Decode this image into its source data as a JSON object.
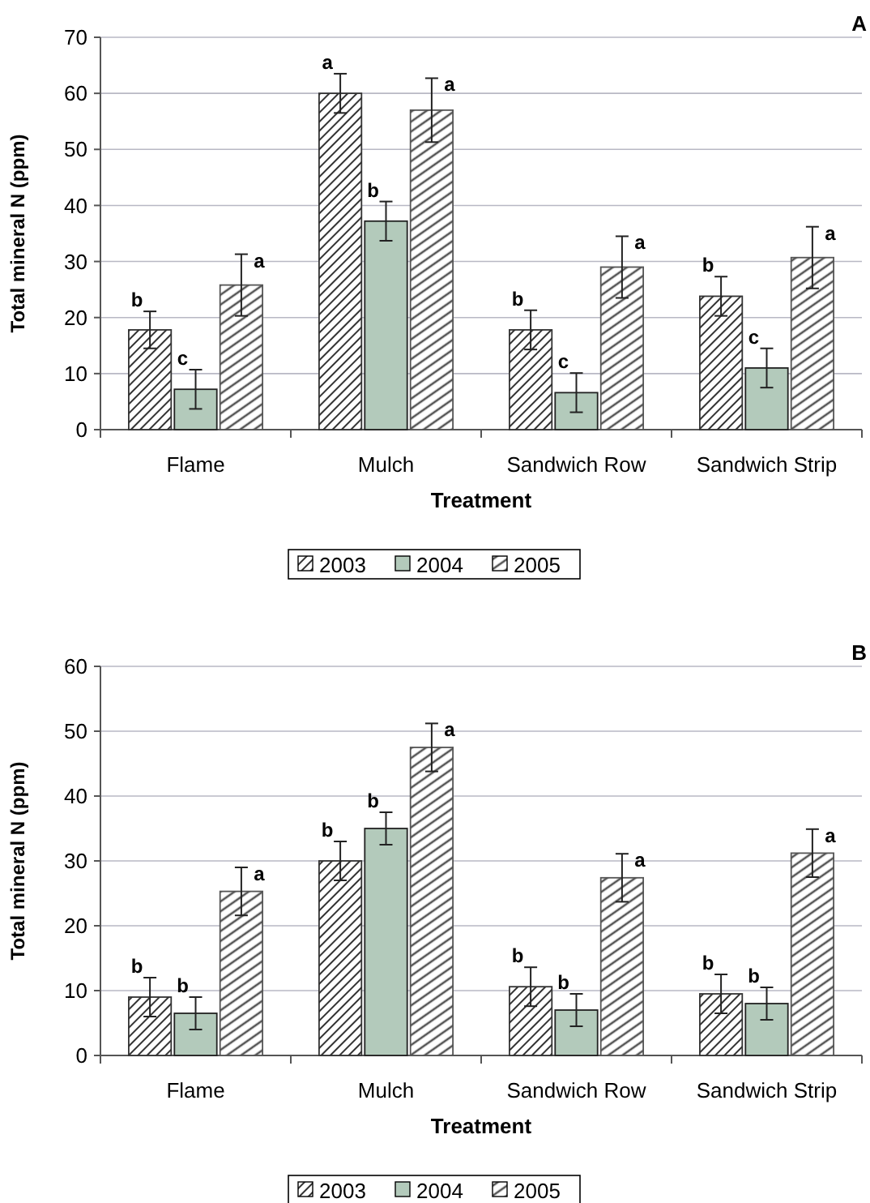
{
  "chart_data": [
    {
      "type": "bar",
      "title": "A",
      "xlabel": "Treatment",
      "ylabel": "Total mineral N (ppm)",
      "categories": [
        "Flame",
        "Mulch",
        "Sandwich Row",
        "Sandwich Strip"
      ],
      "ylim": [
        0,
        70
      ],
      "yticks": [
        0,
        10,
        20,
        30,
        40,
        50,
        60,
        70
      ],
      "grid": "y",
      "legend": "bottom",
      "series": [
        {
          "name": "2003",
          "color": "#333333",
          "values": [
            17.8,
            60,
            17.8,
            23.8
          ],
          "errors": [
            3.3,
            3.5,
            3.5,
            3.5
          ],
          "value_labels": [
            "b",
            "a",
            "b",
            "b"
          ]
        },
        {
          "name": "2004",
          "color": "#b3cabb",
          "values": [
            7.2,
            37.2,
            6.6,
            11
          ],
          "errors": [
            3.5,
            3.5,
            3.5,
            3.5
          ],
          "value_labels": [
            "c",
            "b",
            "c",
            "c"
          ]
        },
        {
          "name": "2005",
          "color": "#555555",
          "values": [
            25.8,
            57,
            29,
            30.7
          ],
          "errors": [
            5.5,
            5.7,
            5.5,
            5.5
          ],
          "value_labels": [
            "a",
            "a",
            "a",
            "a"
          ]
        }
      ]
    },
    {
      "type": "bar",
      "title": "B",
      "xlabel": "Treatment",
      "ylabel": "Total mineral N (ppm)",
      "categories": [
        "Flame",
        "Mulch",
        "Sandwich Row",
        "Sandwich Strip"
      ],
      "ylim": [
        0,
        60
      ],
      "yticks": [
        0,
        10,
        20,
        30,
        40,
        50,
        60
      ],
      "grid": "y",
      "legend": "bottom",
      "series": [
        {
          "name": "2003",
          "color": "#333333",
          "values": [
            9,
            30,
            10.6,
            9.5
          ],
          "errors": [
            3,
            3,
            3,
            3
          ],
          "value_labels": [
            "b",
            "b",
            "b",
            "b"
          ]
        },
        {
          "name": "2004",
          "color": "#b3cabb",
          "values": [
            6.5,
            35,
            7,
            8
          ],
          "errors": [
            2.5,
            2.5,
            2.5,
            2.5
          ],
          "value_labels": [
            "b",
            "b",
            "b",
            "b"
          ]
        },
        {
          "name": "2005",
          "color": "#555555",
          "values": [
            25.3,
            47.5,
            27.4,
            31.2
          ],
          "errors": [
            3.7,
            3.7,
            3.7,
            3.7
          ],
          "value_labels": [
            "a",
            "a",
            "a",
            "a"
          ]
        }
      ]
    }
  ]
}
